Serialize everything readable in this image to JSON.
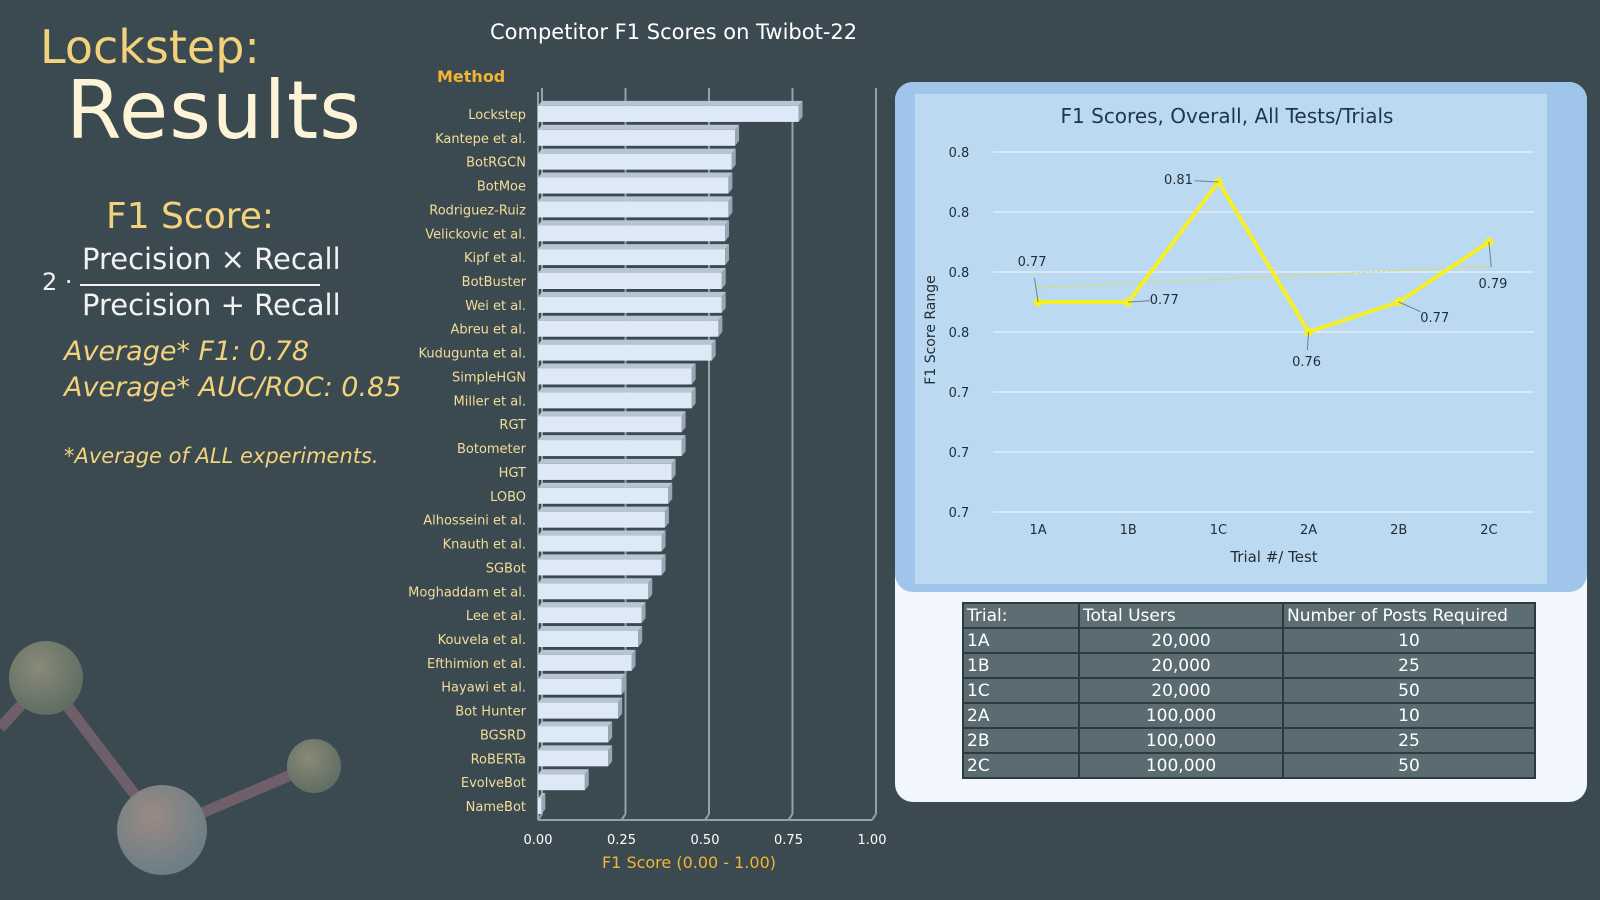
{
  "left_panel": {
    "title_line1": "Lockstep:",
    "title_line2": "Results",
    "f1_label": "F1 Score:",
    "formula_coefficient": "2 ·",
    "formula_numerator": "Precision × Recall",
    "formula_denominator": "Precision + Recall",
    "average_f1": "Average* F1: 0.78",
    "average_auc": "Average* AUC/ROC: 0.85",
    "note": "*Average of ALL experiments."
  },
  "colors": {
    "background": "#3b4a51",
    "accent_gold": "#f3d27c",
    "bar_fill": "#dde9f6",
    "line_series": "#f5ef2a",
    "panel_blue": "#9fc6ea",
    "plot_blue": "#bcd9f2",
    "table_cell": "#5a6c72"
  },
  "chart_data": [
    {
      "type": "bar",
      "orientation": "horizontal",
      "title": "Competitor F1 Scores on Twibot-22",
      "category_axis_label": "Method",
      "xlabel": "F1 Score (0.00 - 1.00)",
      "xlim": [
        0,
        1
      ],
      "x_ticks": [
        "0.00",
        "0.25",
        "0.50",
        "0.75",
        "1.00"
      ],
      "grid": true,
      "categories": [
        "Lockstep",
        "Kantepe et al.",
        "BotRGCN",
        "BotMoe",
        "Rodriguez-Ruiz",
        "Velickovic et al.",
        "Kipf et al.",
        "BotBuster",
        "Wei et al.",
        "Abreu et al.",
        "Kudugunta et al.",
        "SimpleHGN",
        "Miller et al.",
        "RGT",
        "Botometer",
        "HGT",
        "LOBO",
        "Alhosseini et al.",
        "Knauth et al.",
        "SGBot",
        "Moghaddam et al.",
        "Lee et al.",
        "Kouvela et al.",
        "Efthimion et al.",
        "Hayawi et al.",
        "Bot Hunter",
        "BGSRD",
        "RoBERTa",
        "EvolveBot",
        "NameBot"
      ],
      "values": [
        0.78,
        0.59,
        0.58,
        0.57,
        0.57,
        0.56,
        0.56,
        0.55,
        0.55,
        0.54,
        0.52,
        0.46,
        0.46,
        0.43,
        0.43,
        0.4,
        0.39,
        0.38,
        0.37,
        0.37,
        0.33,
        0.31,
        0.3,
        0.28,
        0.25,
        0.24,
        0.21,
        0.21,
        0.14,
        0.01
      ]
    },
    {
      "type": "line",
      "title": "F1 Scores, Overall, All Tests/Trials",
      "xlabel": "Trial #/ Test",
      "ylabel": "F1 Score Range",
      "categories": [
        "1A",
        "1B",
        "1C",
        "2A",
        "2B",
        "2C"
      ],
      "values": [
        0.77,
        0.77,
        0.81,
        0.76,
        0.77,
        0.79
      ],
      "data_labels": [
        "0.77",
        "0.77",
        "0.81",
        "0.76",
        "0.77",
        "0.79"
      ],
      "ylim": [
        0.7,
        0.82
      ],
      "y_tick_labels": [
        "0.8",
        "0.8",
        "0.8",
        "0.8",
        "0.7",
        "0.7",
        "0.7"
      ],
      "trendline": "linear, dotted",
      "grid": true
    }
  ],
  "table": {
    "headers": [
      "Trial:",
      "Total Users",
      "Number of Posts Required"
    ],
    "rows": [
      [
        "1A",
        "20,000",
        "10"
      ],
      [
        "1B",
        "20,000",
        "25"
      ],
      [
        "1C",
        "20,000",
        "50"
      ],
      [
        "2A",
        "100,000",
        "10"
      ],
      [
        "2B",
        "100,000",
        "25"
      ],
      [
        "2C",
        "100,000",
        "50"
      ]
    ]
  }
}
